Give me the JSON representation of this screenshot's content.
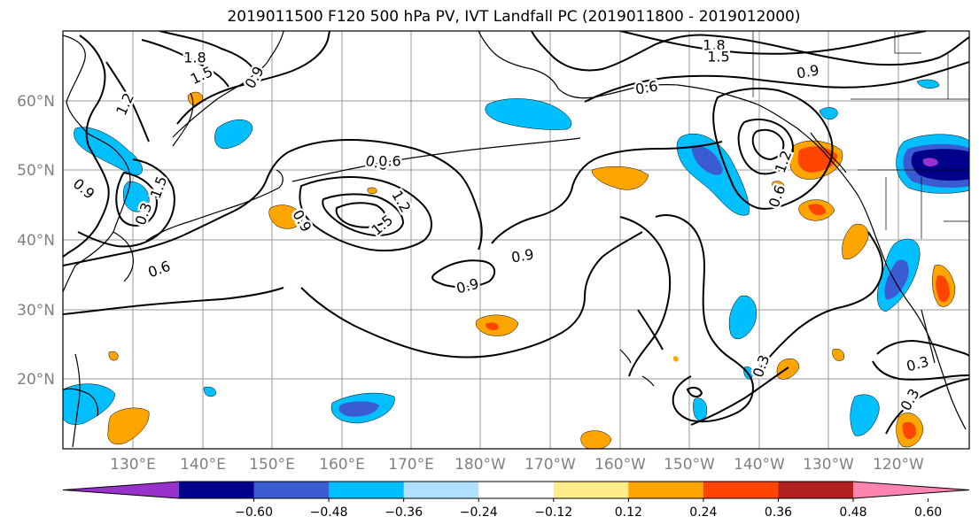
{
  "title": "2019011500 F120 500 hPa PV, IVT Landfall PC (2019011800 - 2019012000)",
  "lon_labels": [
    "130°E",
    "140°E",
    "150°E",
    "160°E",
    "170°E",
    "180°W",
    "170°W",
    "160°W",
    "150°W",
    "140°W",
    "130°W",
    "120°W"
  ],
  "lat_labels": [
    "60°N",
    "50°N",
    "40°N",
    "30°N",
    "20°N"
  ],
  "contour_labels": [
    "1.8",
    "1.5",
    "1.2",
    "0.9",
    "0.6",
    "0.6",
    "1.5",
    "1.2",
    "0.9",
    "0.9",
    "0.9",
    "0.6",
    "1.8",
    "1.5",
    "0.9",
    "0.6",
    "1.2",
    "0.9",
    "0.3",
    "0.3",
    "0.3",
    "0.3",
    "1.5",
    "0.6"
  ],
  "colorbar": {
    "ticks": [
      "−0.60",
      "−0.48",
      "−0.36",
      "−0.24",
      "−0.12",
      "0.12",
      "0.24",
      "0.36",
      "0.48",
      "0.60"
    ],
    "colors": [
      "#9932cc",
      "#00008b",
      "#3a5bd1",
      "#00bfff",
      "#b0e0ff",
      "#ffffff",
      "#ffec8b",
      "#ffa500",
      "#ff4500",
      "#b22222",
      "#ff85b0"
    ]
  }
}
